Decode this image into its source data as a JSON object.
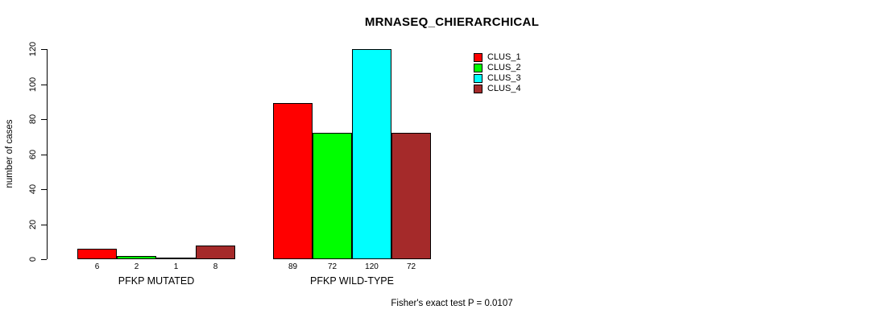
{
  "chart_data": {
    "type": "bar",
    "title": "MRNASEQ_CHIERARCHICAL",
    "ylabel": "number of cases",
    "ylim": [
      0,
      120
    ],
    "yticks": [
      0,
      20,
      40,
      60,
      80,
      100,
      120
    ],
    "categories": [
      "PFKP MUTATED",
      "PFKP WILD-TYPE"
    ],
    "series": [
      {
        "name": "CLUS_1",
        "color": "#FF0000",
        "values": [
          6,
          89
        ]
      },
      {
        "name": "CLUS_2",
        "color": "#00FF00",
        "values": [
          2,
          72
        ]
      },
      {
        "name": "CLUS_3",
        "color": "#00FFFF",
        "values": [
          1,
          120
        ]
      },
      {
        "name": "CLUS_4",
        "color": "#A52A2A",
        "values": [
          8,
          72
        ]
      }
    ],
    "bar_value_labels": [
      [
        "6",
        "2",
        "1",
        "8"
      ],
      [
        "89",
        "72",
        "120",
        "72"
      ]
    ],
    "legend_position": "top-right",
    "grid": false,
    "annotation": "Fisher's exact test P = 0.0107"
  }
}
